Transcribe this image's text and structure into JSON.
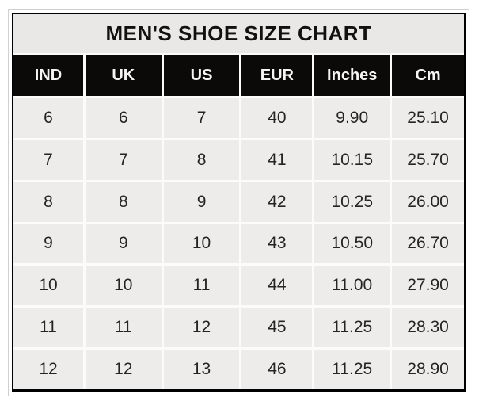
{
  "table": {
    "title": "MEN'S SHOE SIZE CHART",
    "columns": [
      "IND",
      "UK",
      "US",
      "EUR",
      "Inches",
      "Cm"
    ],
    "rows": [
      [
        "6",
        "6",
        "7",
        "40",
        "9.90",
        "25.10"
      ],
      [
        "7",
        "7",
        "8",
        "41",
        "10.15",
        "25.70"
      ],
      [
        "8",
        "8",
        "9",
        "42",
        "10.25",
        "26.00"
      ],
      [
        "9",
        "9",
        "10",
        "43",
        "10.50",
        "26.70"
      ],
      [
        "10",
        "10",
        "11",
        "44",
        "11.00",
        "27.90"
      ],
      [
        "11",
        "11",
        "12",
        "45",
        "11.25",
        "28.30"
      ],
      [
        "12",
        "12",
        "13",
        "46",
        "11.25",
        "28.90"
      ]
    ]
  },
  "colors": {
    "title_bg": "#e9e8e6",
    "header_bg": "#0c0a09",
    "header_text": "#f6f5f3",
    "row_bg": "#edeceb",
    "gridline": "#fbfbfa",
    "outer_border": "#000000",
    "body_text": "#242424",
    "frame_line": "#d0d0d0"
  },
  "chart_data": {
    "type": "table",
    "title": "MEN'S SHOE SIZE CHART",
    "columns": [
      "IND",
      "UK",
      "US",
      "EUR",
      "Inches",
      "Cm"
    ],
    "rows": [
      [
        6,
        6,
        7,
        40,
        9.9,
        25.1
      ],
      [
        7,
        7,
        8,
        41,
        10.15,
        25.7
      ],
      [
        8,
        8,
        9,
        42,
        10.25,
        26.0
      ],
      [
        9,
        9,
        10,
        43,
        10.5,
        26.7
      ],
      [
        10,
        10,
        11,
        44,
        11.0,
        27.9
      ],
      [
        11,
        11,
        12,
        45,
        11.25,
        28.3
      ],
      [
        12,
        12,
        13,
        46,
        11.25,
        28.9
      ]
    ]
  }
}
